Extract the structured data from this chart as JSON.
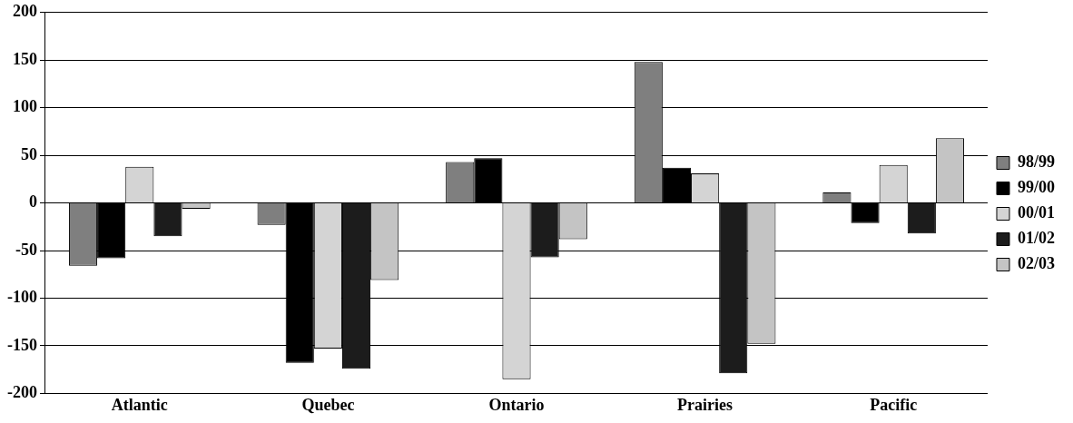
{
  "chart_data": {
    "type": "bar",
    "categories": [
      "Atlantic",
      "Quebec",
      "Ontario",
      "Prairies",
      "Pacific"
    ],
    "series": [
      {
        "name": "98/99",
        "color": "#7f7f7f",
        "values": [
          -66,
          -23,
          43,
          148,
          11
        ]
      },
      {
        "name": "99/00",
        "color": "#000000",
        "values": [
          -58,
          -168,
          47,
          37,
          -21
        ]
      },
      {
        "name": "00/01",
        "color": "#d4d4d4",
        "values": [
          38,
          -153,
          -185,
          31,
          40
        ]
      },
      {
        "name": "01/02",
        "color": "#1c1c1c",
        "values": [
          -35,
          -174,
          -57,
          -179,
          -32
        ]
      },
      {
        "name": "02/03",
        "color": "#c4c4c4",
        "values": [
          -6,
          -81,
          -38,
          -148,
          68
        ]
      }
    ],
    "ylim": [
      -200,
      200
    ],
    "yticks": [
      -200,
      -150,
      -100,
      -50,
      0,
      50,
      100,
      150,
      200
    ],
    "grid": "y",
    "legend": "right"
  }
}
